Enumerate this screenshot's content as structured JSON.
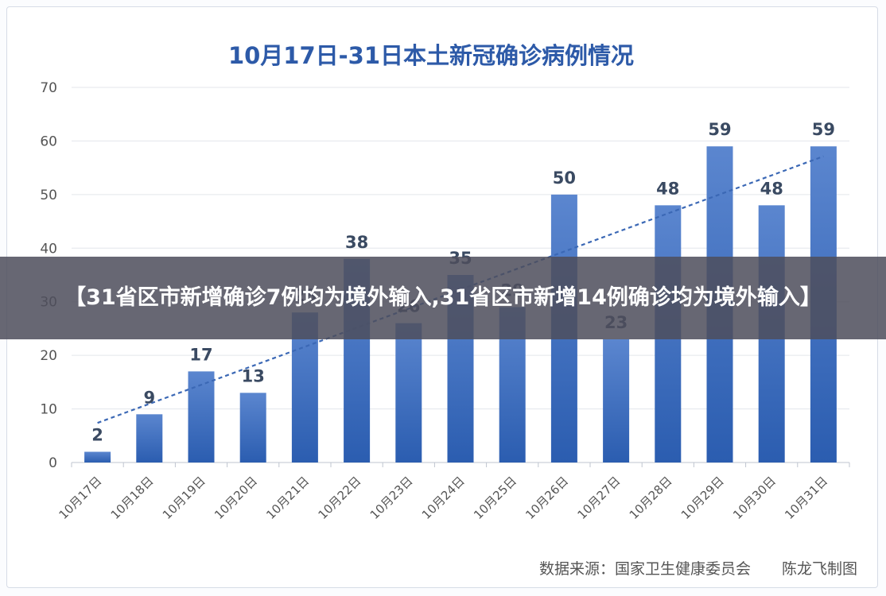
{
  "headline": "【31省区市新增确诊7例均为境外输入,31省区市新增14例确诊均为境外输入】",
  "source_note": "数据来源：国家卫生健康委员会",
  "credit": "陈龙飞制图",
  "colors": {
    "bar_top": "#5b86cf",
    "bar_bottom": "#2b5db0",
    "trendline": "#3b68b5",
    "title": "#2d5aa8",
    "banner": "#4e4e5c"
  },
  "chart_data": {
    "type": "bar",
    "title": "10月17日-31日本土新冠确诊病例情况",
    "xlabel": "",
    "ylabel": "",
    "categories": [
      "10月17日",
      "10月18日",
      "10月19日",
      "10月20日",
      "10月21日",
      "10月22日",
      "10月23日",
      "10月24日",
      "10月25日",
      "10月26日",
      "10月27日",
      "10月28日",
      "10月29日",
      "10月30日",
      "10月31日"
    ],
    "values": [
      2,
      9,
      17,
      13,
      28,
      38,
      26,
      35,
      29,
      50,
      23,
      48,
      59,
      48,
      59
    ],
    "data_labels": [
      "2",
      "9",
      "17",
      "13",
      "28",
      "38",
      "26",
      "35",
      "29",
      "50",
      "23",
      "48",
      "59",
      "48",
      "59"
    ],
    "ylim": [
      0,
      70
    ],
    "yticks": [
      0,
      10,
      20,
      30,
      40,
      50,
      60,
      70
    ],
    "grid": true,
    "legend": "none",
    "trendline": {
      "type": "linear",
      "style": "dashed"
    }
  }
}
